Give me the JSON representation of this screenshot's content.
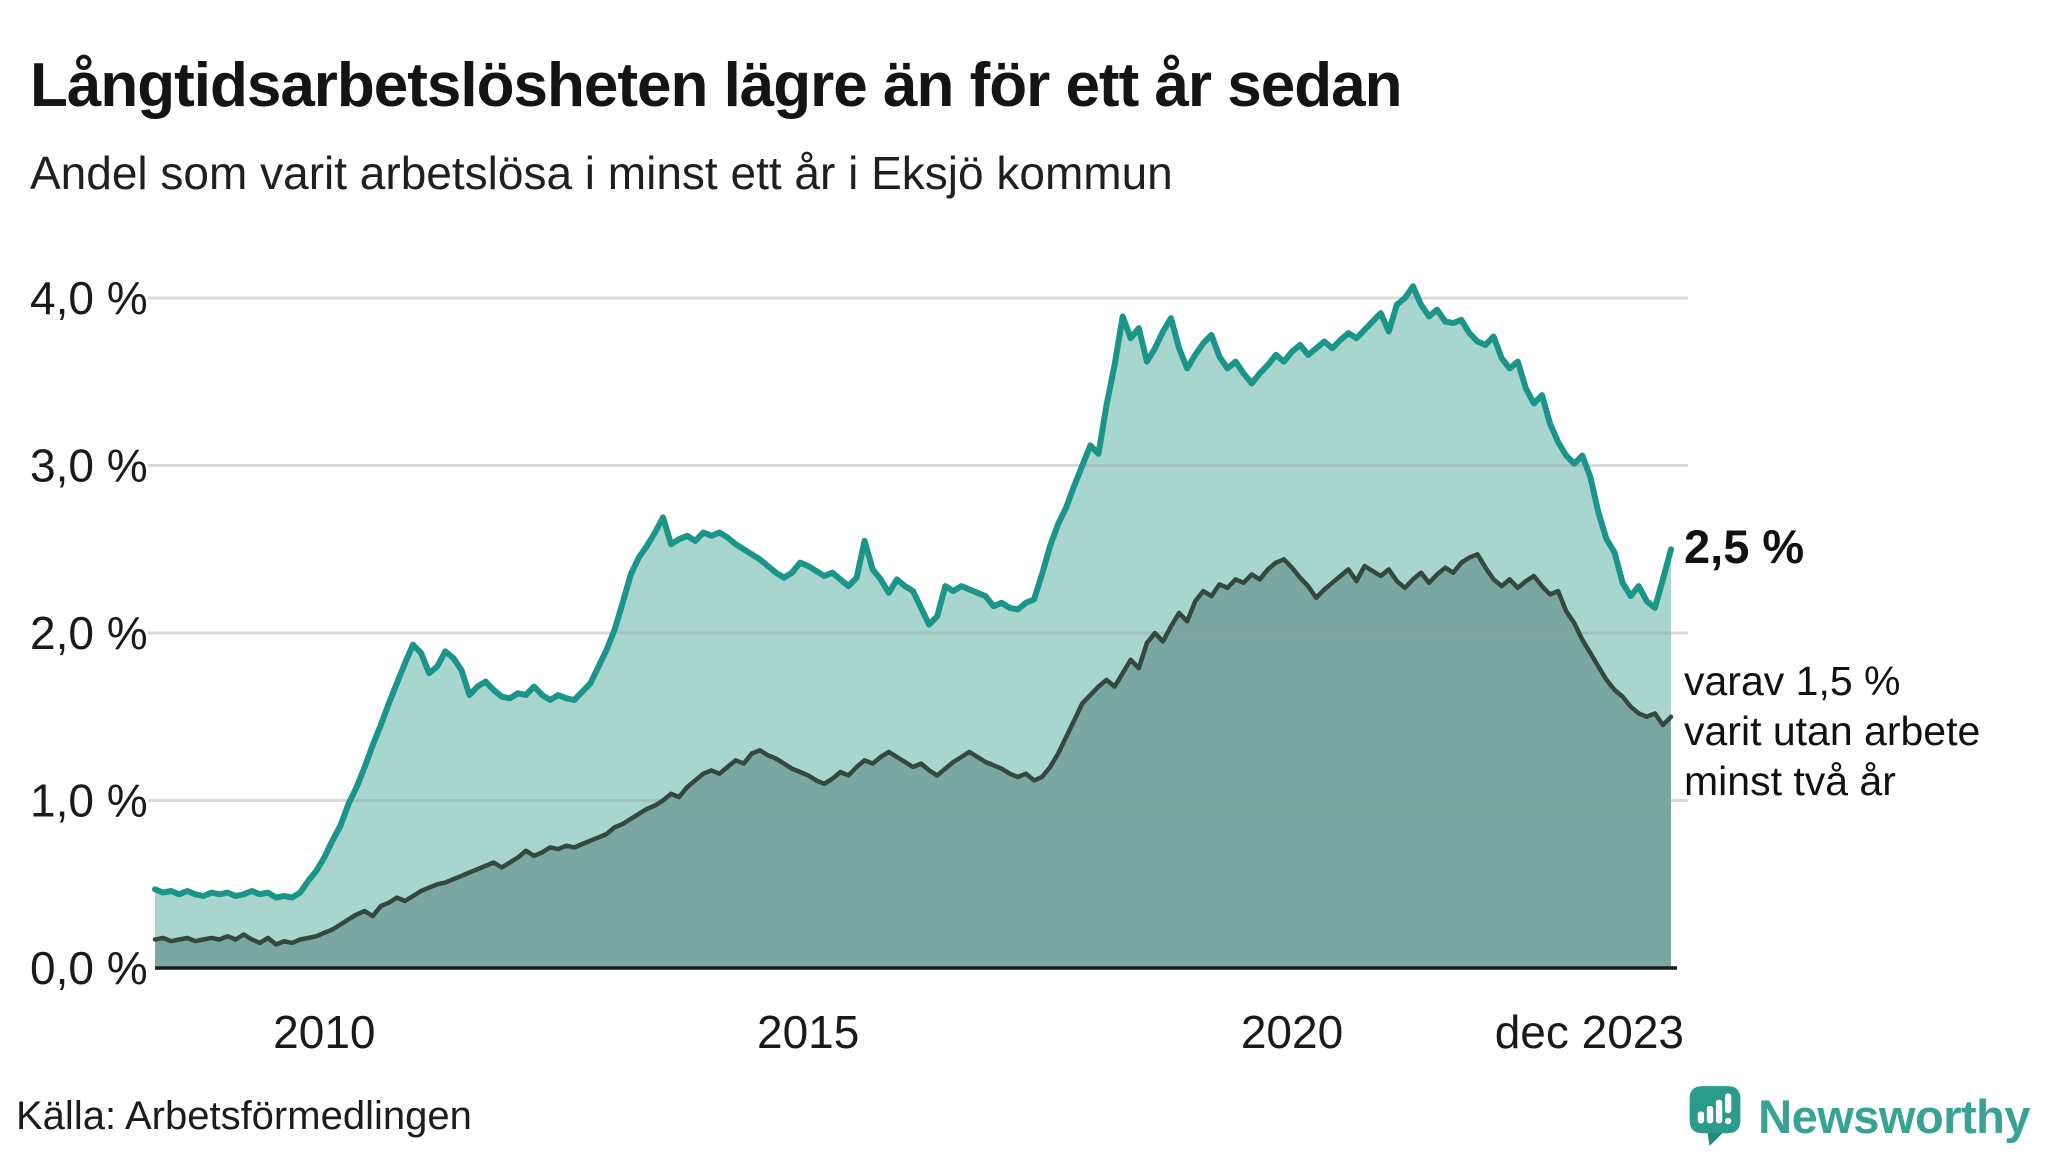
{
  "header": {
    "title": "Långtidsarbetslösheten lägre än för ett år sedan",
    "subtitle": "Andel som varit arbetslösa i minst ett år i Eksjö kommun"
  },
  "annotations": {
    "value_label": "2,5 %",
    "sub_lines": [
      "varav 1,5 %",
      "varit utan arbete",
      "minst två år"
    ]
  },
  "footer": {
    "source": "Källa: Arbetsförmedlingen",
    "logo_text": "Newsworthy"
  },
  "colors": {
    "long_line": "#1b9589",
    "long_fill": "#a8d5ce",
    "verylong_line": "#33493f",
    "verylong_fill": "#7aa7a1",
    "grid": "rgba(150,160,165,0.38)",
    "axis": "#1b1b1b",
    "text": "#1a1a1a",
    "brand_teal": "#38a294",
    "logo_icon": "#2b9c8c",
    "logo_icon_dark": "#1f8a7e"
  },
  "chart_data": {
    "type": "area",
    "title": "Långtidsarbetslösheten lägre än för ett år sedan",
    "subtitle": "Andel som varit arbetslösa i minst ett år i Eksjö kommun",
    "unit": "%",
    "frequency": "monthly",
    "start": "2008-04",
    "end": "2023-12",
    "ylim": [
      0,
      4.3
    ],
    "grid": "horizontal",
    "legend_position": "right-annotations",
    "y_ticks": [
      {
        "label": "4,0 %",
        "value": 4
      },
      {
        "label": "3,0 %",
        "value": 3
      },
      {
        "label": "2,0 %",
        "value": 2
      },
      {
        "label": "1,0 %",
        "value": 1
      },
      {
        "label": "0,0 %",
        "value": 0
      }
    ],
    "x_ticks": [
      {
        "label": "2010",
        "month_index": 21,
        "anchor": "middle"
      },
      {
        "label": "2015",
        "month_index": 81,
        "anchor": "middle"
      },
      {
        "label": "2020",
        "month_index": 141,
        "anchor": "middle"
      },
      {
        "label": "dec 2023",
        "month_index": 188,
        "anchor": "end"
      }
    ],
    "series": [
      {
        "name": "Arbetslösa minst ett år",
        "end_value_label": "2,5 %",
        "last_value": 2.5,
        "values": [
          0.47,
          0.45,
          0.46,
          0.44,
          0.46,
          0.44,
          0.43,
          0.45,
          0.44,
          0.45,
          0.43,
          0.44,
          0.46,
          0.44,
          0.45,
          0.42,
          0.43,
          0.42,
          0.45,
          0.52,
          0.58,
          0.66,
          0.76,
          0.85,
          0.98,
          1.08,
          1.2,
          1.33,
          1.45,
          1.58,
          1.7,
          1.82,
          1.93,
          1.88,
          1.76,
          1.8,
          1.89,
          1.85,
          1.78,
          1.63,
          1.68,
          1.71,
          1.66,
          1.62,
          1.61,
          1.64,
          1.63,
          1.68,
          1.63,
          1.6,
          1.63,
          1.61,
          1.6,
          1.65,
          1.7,
          1.8,
          1.9,
          2.02,
          2.18,
          2.35,
          2.45,
          2.52,
          2.6,
          2.69,
          2.53,
          2.56,
          2.58,
          2.55,
          2.6,
          2.58,
          2.6,
          2.57,
          2.53,
          2.5,
          2.47,
          2.44,
          2.4,
          2.36,
          2.33,
          2.36,
          2.42,
          2.4,
          2.37,
          2.34,
          2.36,
          2.32,
          2.28,
          2.33,
          2.55,
          2.38,
          2.32,
          2.24,
          2.32,
          2.28,
          2.25,
          2.15,
          2.05,
          2.1,
          2.28,
          2.25,
          2.28,
          2.26,
          2.24,
          2.22,
          2.16,
          2.18,
          2.15,
          2.14,
          2.18,
          2.2,
          2.35,
          2.52,
          2.65,
          2.75,
          2.88,
          3.0,
          3.12,
          3.07,
          3.36,
          3.6,
          3.89,
          3.76,
          3.82,
          3.62,
          3.7,
          3.8,
          3.88,
          3.7,
          3.58,
          3.66,
          3.73,
          3.78,
          3.65,
          3.58,
          3.62,
          3.55,
          3.49,
          3.55,
          3.6,
          3.66,
          3.62,
          3.68,
          3.72,
          3.66,
          3.7,
          3.74,
          3.7,
          3.75,
          3.79,
          3.76,
          3.81,
          3.86,
          3.91,
          3.8,
          3.96,
          4.0,
          4.07,
          3.96,
          3.89,
          3.93,
          3.86,
          3.85,
          3.87,
          3.79,
          3.74,
          3.72,
          3.77,
          3.64,
          3.58,
          3.62,
          3.46,
          3.37,
          3.42,
          3.25,
          3.14,
          3.06,
          3.01,
          3.06,
          2.93,
          2.72,
          2.56,
          2.48,
          2.3,
          2.22,
          2.28,
          2.19,
          2.15,
          2.32,
          2.5
        ]
      },
      {
        "name": "varav utan arbete minst två år",
        "end_value_label": "varav 1,5 % varit utan arbete minst två år",
        "last_value": 1.5,
        "values": [
          0.17,
          0.18,
          0.16,
          0.17,
          0.18,
          0.16,
          0.17,
          0.18,
          0.17,
          0.19,
          0.17,
          0.2,
          0.17,
          0.15,
          0.18,
          0.14,
          0.16,
          0.15,
          0.17,
          0.18,
          0.19,
          0.21,
          0.23,
          0.26,
          0.29,
          0.32,
          0.34,
          0.31,
          0.37,
          0.39,
          0.42,
          0.4,
          0.43,
          0.46,
          0.48,
          0.5,
          0.51,
          0.53,
          0.55,
          0.57,
          0.59,
          0.61,
          0.63,
          0.6,
          0.63,
          0.66,
          0.7,
          0.67,
          0.69,
          0.72,
          0.71,
          0.73,
          0.72,
          0.74,
          0.76,
          0.78,
          0.8,
          0.84,
          0.86,
          0.89,
          0.92,
          0.95,
          0.97,
          1.0,
          1.04,
          1.02,
          1.08,
          1.12,
          1.16,
          1.18,
          1.16,
          1.2,
          1.24,
          1.22,
          1.28,
          1.3,
          1.27,
          1.25,
          1.22,
          1.19,
          1.17,
          1.15,
          1.12,
          1.1,
          1.13,
          1.17,
          1.15,
          1.2,
          1.24,
          1.22,
          1.26,
          1.29,
          1.26,
          1.23,
          1.2,
          1.22,
          1.18,
          1.15,
          1.19,
          1.23,
          1.26,
          1.29,
          1.26,
          1.23,
          1.21,
          1.19,
          1.16,
          1.14,
          1.16,
          1.12,
          1.14,
          1.2,
          1.28,
          1.38,
          1.48,
          1.58,
          1.63,
          1.68,
          1.72,
          1.68,
          1.76,
          1.84,
          1.79,
          1.94,
          2.0,
          1.95,
          2.04,
          2.12,
          2.07,
          2.19,
          2.25,
          2.22,
          2.29,
          2.27,
          2.32,
          2.3,
          2.35,
          2.32,
          2.38,
          2.42,
          2.44,
          2.39,
          2.33,
          2.28,
          2.21,
          2.26,
          2.3,
          2.34,
          2.38,
          2.31,
          2.4,
          2.37,
          2.34,
          2.38,
          2.31,
          2.27,
          2.32,
          2.36,
          2.3,
          2.35,
          2.39,
          2.36,
          2.42,
          2.45,
          2.47,
          2.39,
          2.32,
          2.28,
          2.32,
          2.27,
          2.31,
          2.34,
          2.28,
          2.23,
          2.25,
          2.13,
          2.06,
          1.96,
          1.88,
          1.8,
          1.72,
          1.66,
          1.62,
          1.56,
          1.52,
          1.5,
          1.52,
          1.45,
          1.5
        ]
      }
    ]
  }
}
